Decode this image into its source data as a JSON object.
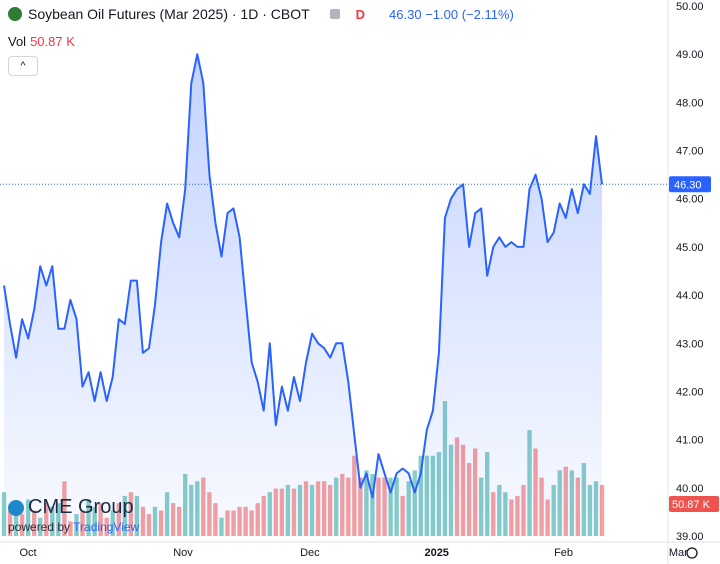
{
  "header": {
    "title": "Soybean Oil Futures (Mar 2025) · 1D · CBOT",
    "flag": "D",
    "quote": "46.30 −1.00 (−2.11%)"
  },
  "volume": {
    "label": "Vol",
    "value": "50.87 K"
  },
  "collapse_icon": "^",
  "branding": {
    "logo_text": "CME Group",
    "powered_by": "powered by",
    "provider": "TradingView"
  },
  "colors": {
    "line": "#2962ff",
    "vol_up": "#26a69a",
    "vol_down": "#ef5350",
    "last_price": "#2962ff"
  },
  "chart_data": {
    "type": "line",
    "price_axis": {
      "min": 39,
      "max": 50,
      "ticks": [
        50,
        49,
        48,
        47,
        46,
        45,
        44,
        43,
        42,
        41,
        40,
        39
      ],
      "tick_labels": [
        "50.00",
        "49.00",
        "48.00",
        "47.00",
        "46.00",
        "45.00",
        "44.00",
        "43.00",
        "42.00",
        "41.00",
        "40.00",
        "39.00"
      ]
    },
    "time_axis": {
      "labels": [
        "Oct",
        "Nov",
        "Dec",
        "2025",
        "Feb",
        "Mar"
      ]
    },
    "last_price": {
      "value": 46.3,
      "label": "46.30"
    },
    "last_volume_label": "50.87 K",
    "series": [
      {
        "values": [
          44.2,
          43.4,
          42.7,
          43.5,
          43.1,
          43.7,
          44.6,
          44.2,
          44.6,
          43.3,
          43.3,
          43.9,
          43.5,
          42.1,
          42.4,
          41.8,
          42.4,
          41.8,
          42.3,
          43.5,
          43.4,
          44.3,
          44.3,
          42.8,
          42.9,
          43.8,
          45.1,
          45.9,
          45.5,
          45.2,
          46.2,
          48.4,
          49.0,
          48.4,
          46.5,
          45.5,
          44.8,
          45.7,
          45.8,
          45.2,
          43.9,
          42.6,
          42.2,
          41.6,
          43.0,
          41.3,
          42.1,
          41.6,
          42.3,
          41.8,
          42.6,
          43.2,
          43.0,
          42.9,
          42.7,
          43.0,
          43.0,
          42.2,
          41.1,
          40.0,
          40.3,
          39.8,
          40.7,
          40.3,
          39.9,
          40.3,
          40.4,
          40.3,
          39.9,
          40.3,
          41.2,
          41.6,
          42.8,
          45.6,
          46.0,
          46.2,
          46.3,
          45.0,
          45.7,
          45.8,
          44.4,
          45.0,
          45.2,
          45.0,
          45.1,
          45.0,
          45.0,
          46.2,
          46.5,
          46.0,
          45.1,
          45.3,
          45.9,
          45.6,
          46.2,
          45.7,
          46.3,
          46.1,
          47.3,
          46.3
        ],
        "volumes": [
          60,
          35,
          40,
          30,
          50,
          35,
          25,
          45,
          40,
          45,
          75,
          20,
          30,
          35,
          50,
          40,
          45,
          25,
          35,
          45,
          55,
          60,
          55,
          40,
          30,
          40,
          35,
          60,
          45,
          40,
          85,
          70,
          75,
          80,
          60,
          45,
          25,
          35,
          35,
          40,
          40,
          35,
          45,
          55,
          60,
          65,
          65,
          70,
          65,
          70,
          75,
          70,
          75,
          75,
          70,
          80,
          85,
          80,
          110,
          80,
          90,
          85,
          80,
          80,
          80,
          80,
          55,
          75,
          90,
          110,
          110,
          110,
          115,
          185,
          125,
          135,
          125,
          100,
          120,
          80,
          115,
          60,
          70,
          60,
          50,
          55,
          70,
          145,
          120,
          80,
          50,
          70,
          90,
          95,
          90,
          80,
          100,
          70,
          75,
          70
        ],
        "vol_up": [
          1,
          0,
          1,
          0,
          1,
          0,
          1,
          0,
          1,
          1,
          0,
          0,
          1,
          0,
          1,
          1,
          0,
          0,
          1,
          0,
          1,
          0,
          1,
          0,
          0,
          1,
          0,
          1,
          0,
          0,
          1,
          1,
          1,
          0,
          0,
          0,
          1,
          0,
          0,
          0,
          0,
          0,
          0,
          0,
          1,
          0,
          0,
          1,
          0,
          1,
          0,
          1,
          0,
          0,
          0,
          1,
          0,
          0,
          0,
          0,
          1,
          1,
          0,
          0,
          1,
          1,
          0,
          1,
          1,
          1,
          1,
          1,
          1,
          1,
          1,
          0,
          0,
          0,
          0,
          1,
          1,
          0,
          1,
          1,
          0,
          0,
          0,
          1,
          0,
          0,
          0,
          1,
          1,
          0,
          1,
          0,
          1,
          1,
          1,
          0
        ]
      }
    ]
  }
}
